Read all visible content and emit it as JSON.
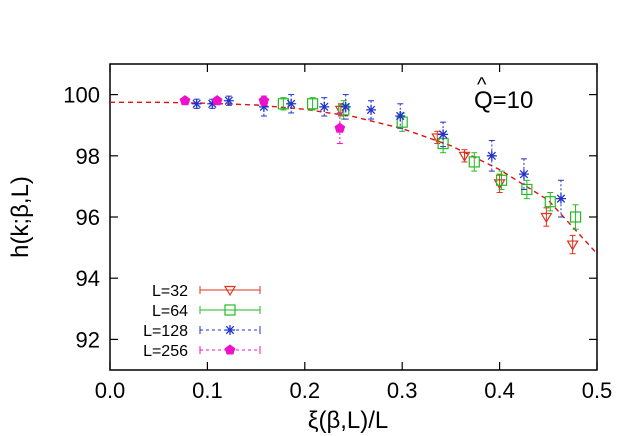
{
  "chart_data": {
    "type": "scatter",
    "xlabel": "ξ(β,L)/L",
    "ylabel": "h(k;β,L)",
    "annotation": "Q=10",
    "annotation_hat": "^",
    "xlim": [
      0.0,
      0.5
    ],
    "ylim": [
      91,
      101
    ],
    "x_ticks": [
      "0.0",
      "0.1",
      "0.2",
      "0.3",
      "0.4",
      "0.5"
    ],
    "y_ticks": [
      "92",
      "94",
      "96",
      "98",
      "100"
    ],
    "legend_position": "bottom-left",
    "series": [
      {
        "name": "L=32",
        "color": "#e0301e",
        "marker": "triangle-down",
        "x": [
          0.237,
          0.336,
          0.364,
          0.4,
          0.448,
          0.475
        ],
        "y": [
          99.5,
          98.6,
          98.0,
          97.1,
          96.0,
          95.1
        ],
        "yerr": [
          0.2,
          0.2,
          0.2,
          0.3,
          0.3,
          0.3
        ]
      },
      {
        "name": "L=64",
        "color": "#22bb22",
        "marker": "square",
        "x": [
          0.178,
          0.208,
          0.24,
          0.3,
          0.342,
          0.374,
          0.402,
          0.428,
          0.452,
          0.478
        ],
        "y": [
          99.7,
          99.7,
          99.5,
          99.1,
          98.4,
          97.8,
          97.2,
          96.9,
          96.5,
          96.0
        ],
        "yerr": [
          0.2,
          0.2,
          0.3,
          0.3,
          0.3,
          0.3,
          0.3,
          0.3,
          0.3,
          0.4
        ]
      },
      {
        "name": "L=128",
        "color": "#2233cc",
        "marker": "star",
        "x": [
          0.089,
          0.105,
          0.122,
          0.158,
          0.186,
          0.22,
          0.242,
          0.268,
          0.298,
          0.342,
          0.392,
          0.425,
          0.463
        ],
        "y": [
          99.7,
          99.7,
          99.8,
          99.6,
          99.7,
          99.6,
          99.6,
          99.5,
          99.3,
          98.7,
          98.0,
          97.4,
          96.6
        ],
        "yerr": [
          0.15,
          0.15,
          0.15,
          0.3,
          0.3,
          0.3,
          0.4,
          0.3,
          0.4,
          0.4,
          0.5,
          0.5,
          0.6
        ]
      },
      {
        "name": "L=256",
        "color": "#ee11cc",
        "marker": "pentagon",
        "x": [
          0.077,
          0.11,
          0.158,
          0.236
        ],
        "y": [
          99.8,
          99.8,
          99.8,
          98.9
        ],
        "yerr": [
          0.1,
          0.1,
          0.15,
          0.5
        ]
      }
    ],
    "fit_curve": {
      "color": "#dd1111",
      "style": "dashed",
      "x": [
        0.0,
        0.05,
        0.1,
        0.15,
        0.2,
        0.25,
        0.3,
        0.35,
        0.4,
        0.45,
        0.5
      ],
      "y": [
        99.75,
        99.75,
        99.72,
        99.66,
        99.52,
        99.28,
        98.89,
        98.33,
        97.55,
        96.55,
        94.8
      ]
    }
  }
}
